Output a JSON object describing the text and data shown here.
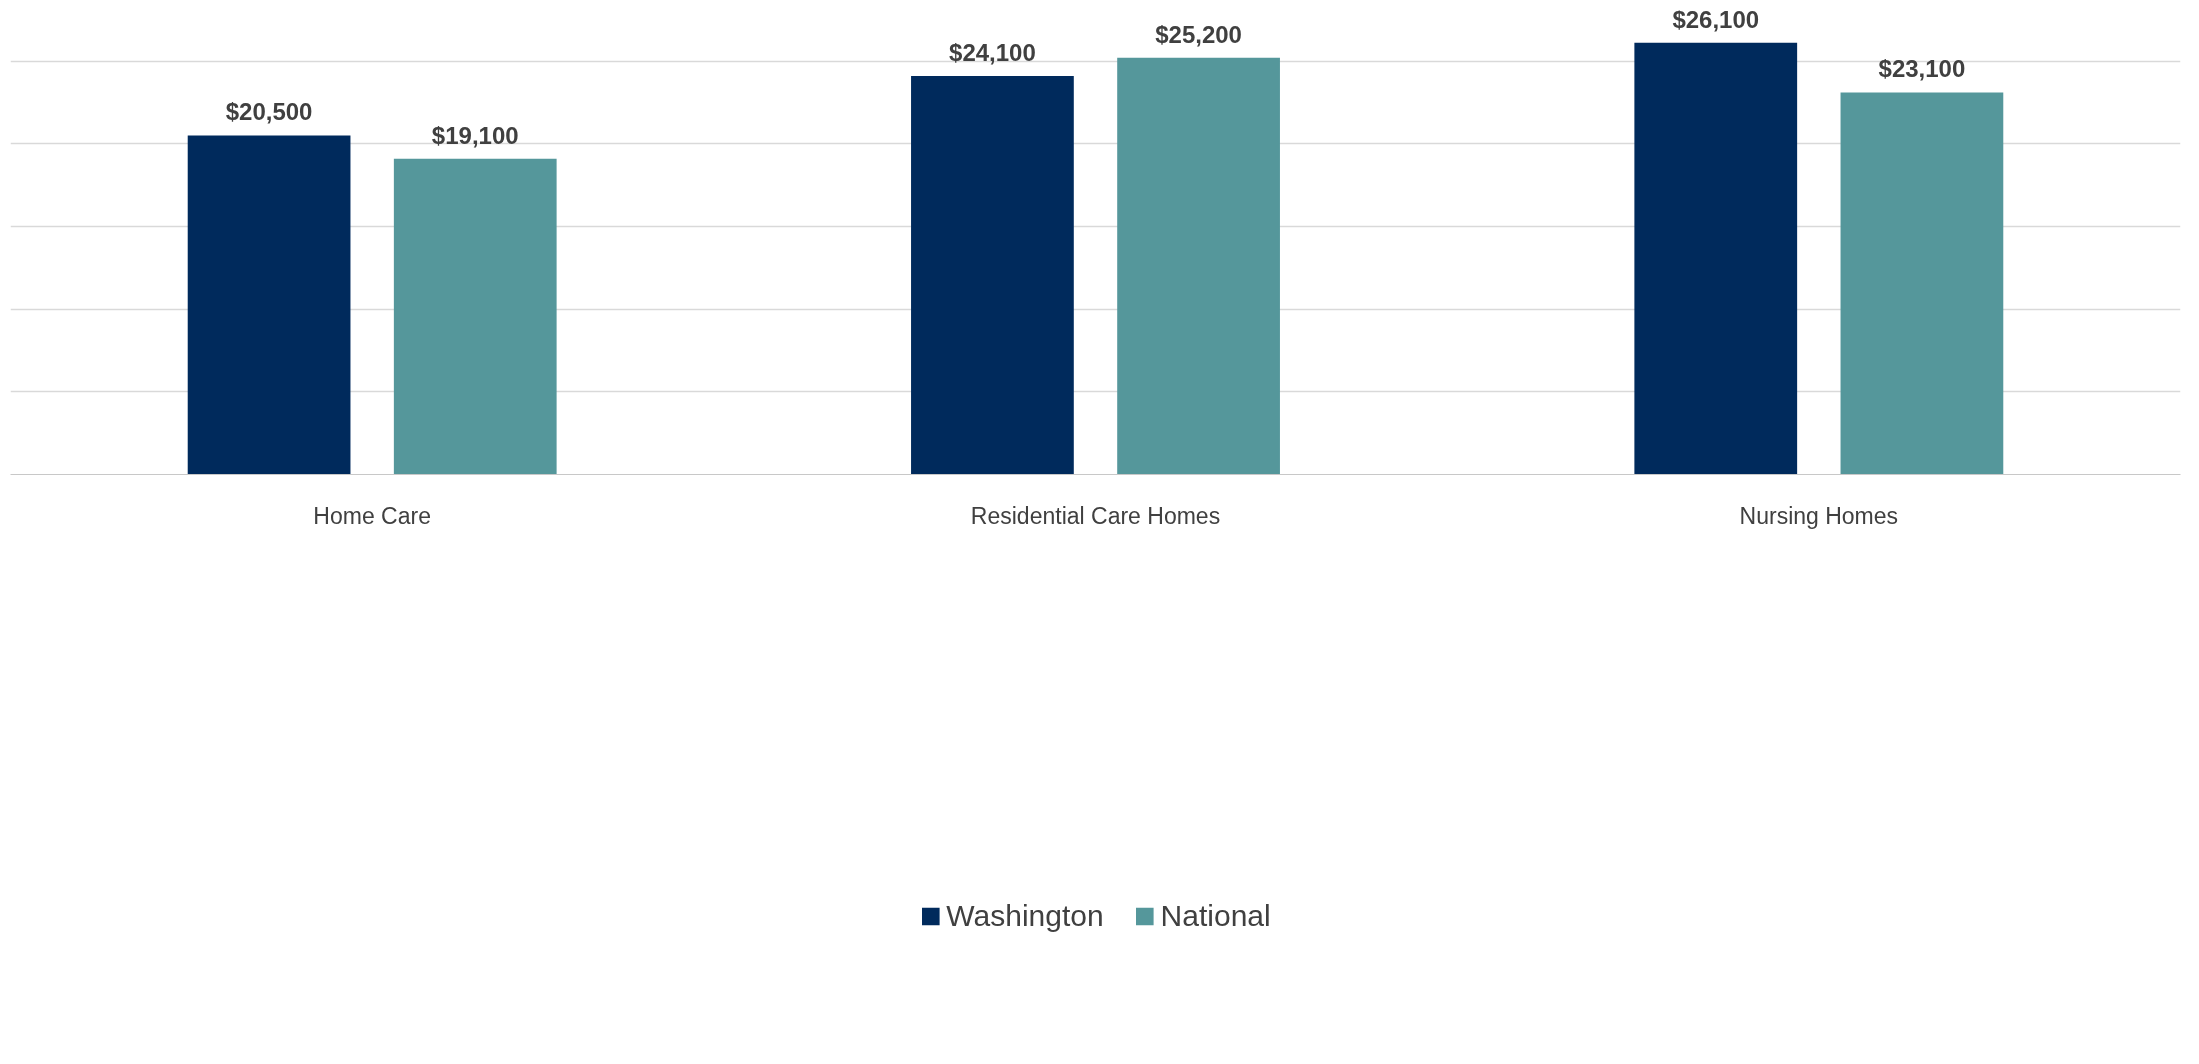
{
  "chart_data": {
    "type": "bar",
    "categories": [
      "Home Care",
      "Residential Care Homes",
      "Nursing Homes"
    ],
    "series": [
      {
        "name": "Washington",
        "color": "#002a5c",
        "values": [
          20500,
          24100,
          26100
        ],
        "value_labels": [
          "$20,500",
          "$24,100",
          "$26,100"
        ]
      },
      {
        "name": "National",
        "color": "#55979b",
        "values": [
          19100,
          25200,
          23100
        ],
        "value_labels": [
          "$19,100",
          "$25,200",
          "$23,100"
        ]
      }
    ],
    "tick_labels": "x",
    "grid": "y",
    "legend": "bottom"
  }
}
